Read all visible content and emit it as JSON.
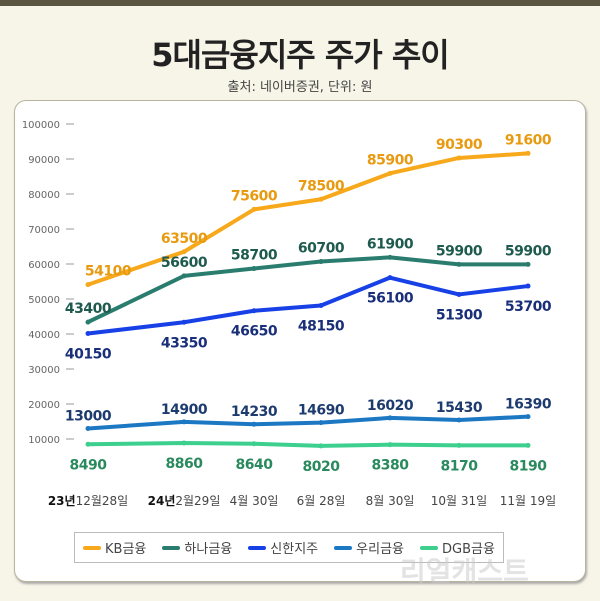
{
  "title": "5대금융지주 주가 추이",
  "subtitle": "출처: 네이버증권, 단위: 원",
  "watermark": "리얼캐스트",
  "chart_data": {
    "type": "line",
    "title": "5대금융지주 주가 추이",
    "categories": [
      "23년12월28일",
      "24년2월29일",
      "4월 30일",
      "6월 28일",
      "8월 30일",
      "10월 31일",
      "11월 19일"
    ],
    "ylim": [
      10000,
      100000
    ],
    "yticks": [
      "100000",
      "90000",
      "80000",
      "70000",
      "60000",
      "50000",
      "40000",
      "30000",
      "20000",
      "10000"
    ],
    "legend_position": "bottom",
    "series": [
      {
        "name": "KB금융",
        "color": "#f7a81b",
        "label_color": "#e89a10",
        "values": [
          54100,
          63500,
          75600,
          78500,
          85900,
          90300,
          91600
        ]
      },
      {
        "name": "하나금융",
        "color": "#2a7d6e",
        "label_color": "#1f5a4e",
        "values": [
          43400,
          56600,
          58700,
          60700,
          61900,
          59900,
          59900
        ]
      },
      {
        "name": "신한지주",
        "color": "#1740e6",
        "label_color": "#1a2f7a",
        "values": [
          40150,
          43350,
          46650,
          48150,
          56100,
          51300,
          53700
        ]
      },
      {
        "name": "우리금융",
        "color": "#1c78c2",
        "label_color": "#1d3b6e",
        "values": [
          13000,
          14900,
          14230,
          14690,
          16020,
          15430,
          16390
        ]
      },
      {
        "name": "DGB금융",
        "color": "#3ccf8e",
        "label_color": "#2a8a5e",
        "values": [
          8490,
          8860,
          8640,
          8020,
          8380,
          8170,
          8190
        ]
      }
    ]
  }
}
